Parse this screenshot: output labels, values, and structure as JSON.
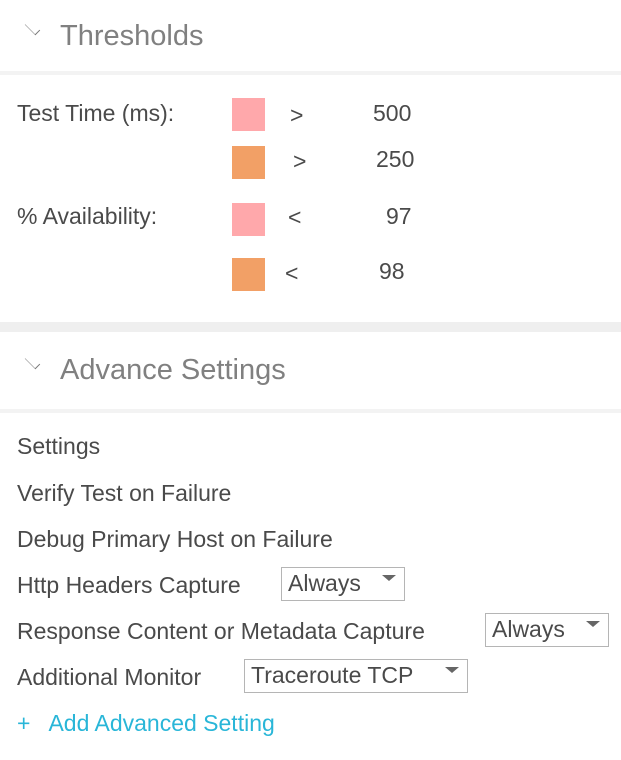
{
  "thresholds": {
    "title": "Thresholds",
    "rows": [
      {
        "label": "Test Time (ms):",
        "color": "#ffa8ab",
        "operator": ">",
        "value": "500"
      },
      {
        "label": "",
        "color": "#f2a066",
        "operator": ">",
        "value": "250"
      },
      {
        "label": "% Availability:",
        "color": "#ffa8ab",
        "operator": "<",
        "value": "97"
      },
      {
        "label": "",
        "color": "#f2a066",
        "operator": "<",
        "value": "98"
      }
    ]
  },
  "advanced": {
    "title": "Advance Settings",
    "settings_heading": "Settings",
    "verify": "Verify Test on Failure",
    "debug": "Debug Primary Host on Failure",
    "http_headers": {
      "label": "Http Headers Capture",
      "value": "Always"
    },
    "response_content": {
      "label": "Response Content or Metadata Capture",
      "value": "Always"
    },
    "additional_monitor": {
      "label": "Additional Monitor",
      "value": "Traceroute TCP"
    },
    "add_plus": "+",
    "add_label": "Add Advanced Setting",
    "accent": "#29b6d8"
  }
}
